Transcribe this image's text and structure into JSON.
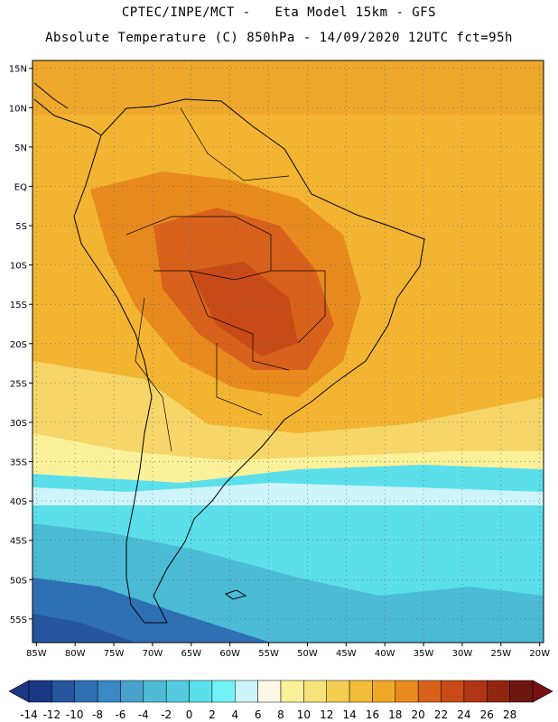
{
  "header": {
    "line1": "CPTEC/INPE/MCT -   Eta Model 15km - GFS",
    "line2": "Absolute Temperature (C) 850hPa - 14/09/2020 12UTC fct=95h"
  },
  "map": {
    "lat_labels": [
      "15N",
      "10N",
      "5N",
      "EQ",
      "5S",
      "10S",
      "15S",
      "20S",
      "25S",
      "30S",
      "35S",
      "40S",
      "45S",
      "50S",
      "55S"
    ],
    "lon_labels": [
      "85W",
      "80W",
      "75W",
      "70W",
      "65W",
      "60W",
      "55W",
      "50W",
      "45W",
      "40W",
      "35W",
      "30W",
      "25W",
      "20W"
    ],
    "lat_range": [
      -58,
      16
    ],
    "lon_range": [
      -85.5,
      -19.5
    ],
    "grid": "dotted",
    "field_description_colors": [
      "#1f3f8f",
      "#4bd6e6",
      "#f8e27a",
      "#f0a828",
      "#d8621c",
      "#b04414"
    ]
  },
  "colorbar": {
    "labels": [
      "-14",
      "-12",
      "-10",
      "-8",
      "-6",
      "-4",
      "-2",
      "0",
      "2",
      "4",
      "6",
      "8",
      "10",
      "12",
      "14",
      "16",
      "18",
      "20",
      "22",
      "24",
      "26",
      "28"
    ],
    "colors": [
      "#1a3784",
      "#24559e",
      "#2e70b4",
      "#3a88c4",
      "#48a2cc",
      "#4fbad4",
      "#54cbe0",
      "#5bdfea",
      "#72f2f6",
      "#cdf4fb",
      "#fff8e6",
      "#fbf19a",
      "#f8e27a",
      "#f4cd53",
      "#f2bd38",
      "#f0a828",
      "#e88a1e",
      "#d8621c",
      "#c84a17",
      "#b03514",
      "#902610",
      "#6e1710"
    ]
  }
}
